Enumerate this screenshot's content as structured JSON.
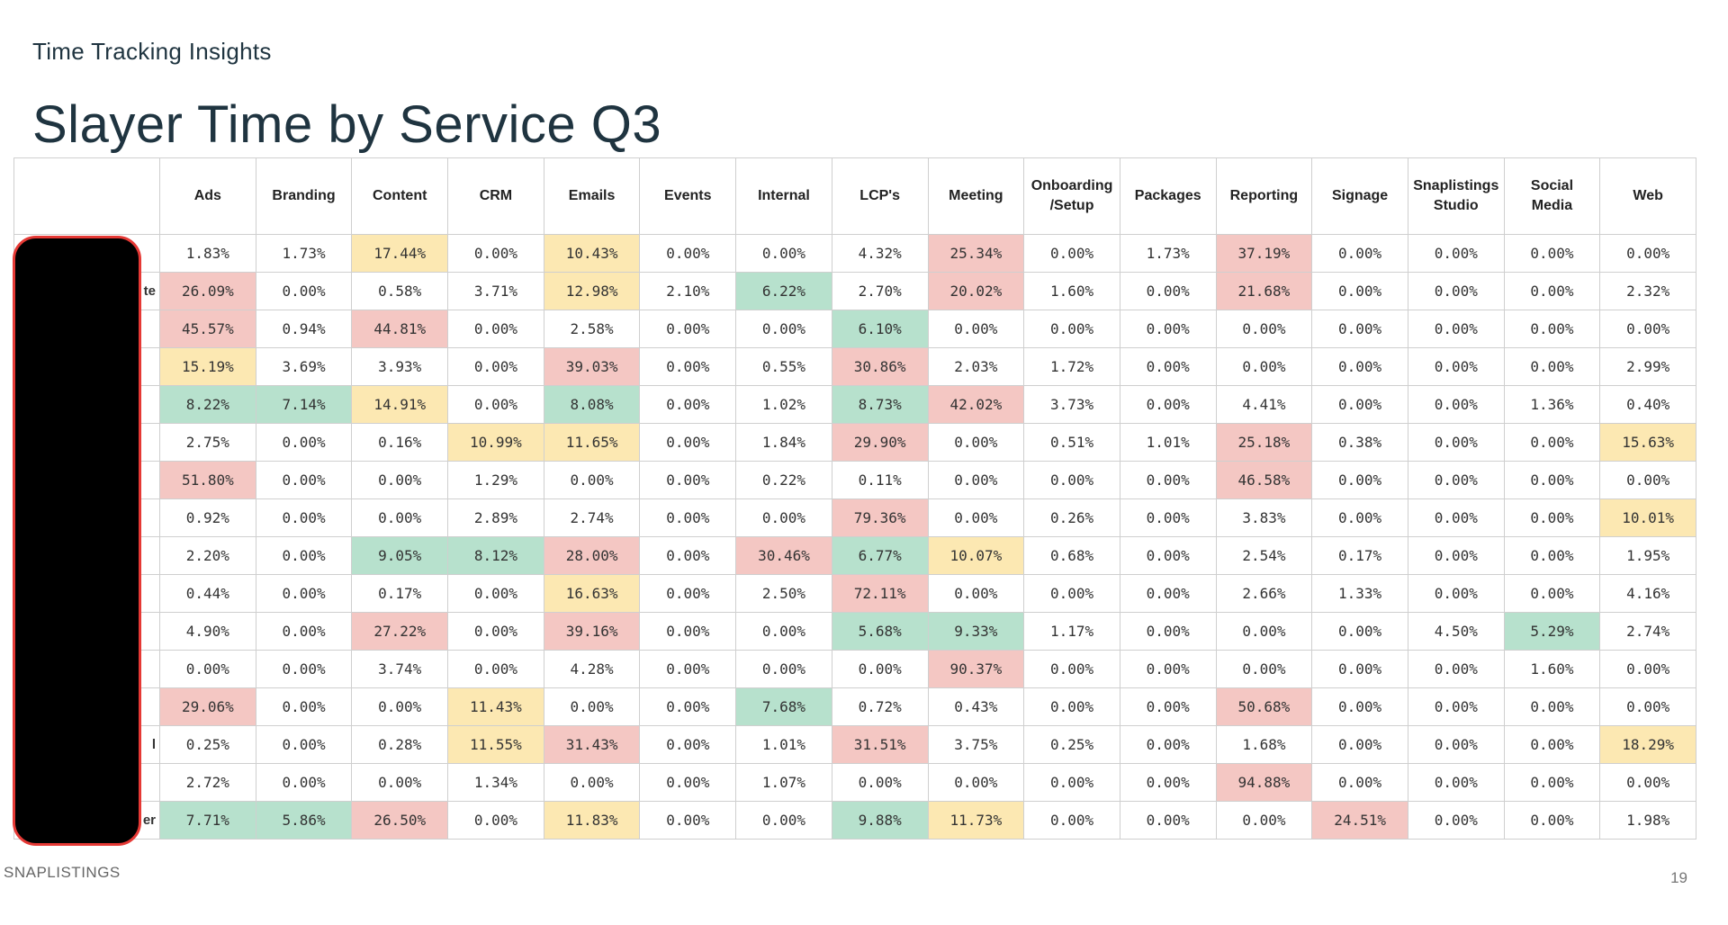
{
  "header": {
    "eyebrow": "Time Tracking Insights",
    "title": "Slayer Time by Service Q3"
  },
  "table": {
    "columns": [
      "Ads",
      "Branding",
      "Content",
      "CRM",
      "Emails",
      "Events",
      "Internal",
      "LCP's",
      "Meeting",
      "Onboarding\n/Setup",
      "Packages",
      "Reporting",
      "Signage",
      "Snaplistings\nStudio",
      "Social\nMedia",
      "Web"
    ],
    "rows": [
      {
        "name": "",
        "values": [
          "1.83%",
          "1.73%",
          "17.44%",
          "0.00%",
          "10.43%",
          "0.00%",
          "0.00%",
          "4.32%",
          "25.34%",
          "0.00%",
          "1.73%",
          "37.19%",
          "0.00%",
          "0.00%",
          "0.00%",
          "0.00%"
        ],
        "colors": [
          "",
          "",
          "y",
          "",
          "y",
          "",
          "",
          "",
          "r",
          "",
          "",
          "r",
          "",
          "",
          "",
          ""
        ]
      },
      {
        "name": "te",
        "values": [
          "26.09%",
          "0.00%",
          "0.58%",
          "3.71%",
          "12.98%",
          "2.10%",
          "6.22%",
          "2.70%",
          "20.02%",
          "1.60%",
          "0.00%",
          "21.68%",
          "0.00%",
          "0.00%",
          "0.00%",
          "2.32%"
        ],
        "colors": [
          "r",
          "",
          "",
          "",
          "y",
          "",
          "g",
          "",
          "r",
          "",
          "",
          "r",
          "",
          "",
          "",
          ""
        ]
      },
      {
        "name": "",
        "values": [
          "45.57%",
          "0.94%",
          "44.81%",
          "0.00%",
          "2.58%",
          "0.00%",
          "0.00%",
          "6.10%",
          "0.00%",
          "0.00%",
          "0.00%",
          "0.00%",
          "0.00%",
          "0.00%",
          "0.00%",
          "0.00%"
        ],
        "colors": [
          "r",
          "",
          "r",
          "",
          "",
          "",
          "",
          "g",
          "",
          "",
          "",
          "",
          "",
          "",
          "",
          ""
        ]
      },
      {
        "name": "",
        "values": [
          "15.19%",
          "3.69%",
          "3.93%",
          "0.00%",
          "39.03%",
          "0.00%",
          "0.55%",
          "30.86%",
          "2.03%",
          "1.72%",
          "0.00%",
          "0.00%",
          "0.00%",
          "0.00%",
          "0.00%",
          "2.99%"
        ],
        "colors": [
          "y",
          "",
          "",
          "",
          "r",
          "",
          "",
          "r",
          "",
          "",
          "",
          "",
          "",
          "",
          "",
          ""
        ]
      },
      {
        "name": "",
        "values": [
          "8.22%",
          "7.14%",
          "14.91%",
          "0.00%",
          "8.08%",
          "0.00%",
          "1.02%",
          "8.73%",
          "42.02%",
          "3.73%",
          "0.00%",
          "4.41%",
          "0.00%",
          "0.00%",
          "1.36%",
          "0.40%"
        ],
        "colors": [
          "g",
          "g",
          "y",
          "",
          "g",
          "",
          "",
          "g",
          "r",
          "",
          "",
          "",
          "",
          "",
          "",
          ""
        ]
      },
      {
        "name": "",
        "values": [
          "2.75%",
          "0.00%",
          "0.16%",
          "10.99%",
          "11.65%",
          "0.00%",
          "1.84%",
          "29.90%",
          "0.00%",
          "0.51%",
          "1.01%",
          "25.18%",
          "0.38%",
          "0.00%",
          "0.00%",
          "15.63%"
        ],
        "colors": [
          "",
          "",
          "",
          "y",
          "y",
          "",
          "",
          "r",
          "",
          "",
          "",
          "r",
          "",
          "",
          "",
          "y"
        ]
      },
      {
        "name": "",
        "values": [
          "51.80%",
          "0.00%",
          "0.00%",
          "1.29%",
          "0.00%",
          "0.00%",
          "0.22%",
          "0.11%",
          "0.00%",
          "0.00%",
          "0.00%",
          "46.58%",
          "0.00%",
          "0.00%",
          "0.00%",
          "0.00%"
        ],
        "colors": [
          "r",
          "",
          "",
          "",
          "",
          "",
          "",
          "",
          "",
          "",
          "",
          "r",
          "",
          "",
          "",
          ""
        ]
      },
      {
        "name": "",
        "values": [
          "0.92%",
          "0.00%",
          "0.00%",
          "2.89%",
          "2.74%",
          "0.00%",
          "0.00%",
          "79.36%",
          "0.00%",
          "0.26%",
          "0.00%",
          "3.83%",
          "0.00%",
          "0.00%",
          "0.00%",
          "10.01%"
        ],
        "colors": [
          "",
          "",
          "",
          "",
          "",
          "",
          "",
          "r",
          "",
          "",
          "",
          "",
          "",
          "",
          "",
          "y"
        ]
      },
      {
        "name": "",
        "values": [
          "2.20%",
          "0.00%",
          "9.05%",
          "8.12%",
          "28.00%",
          "0.00%",
          "30.46%",
          "6.77%",
          "10.07%",
          "0.68%",
          "0.00%",
          "2.54%",
          "0.17%",
          "0.00%",
          "0.00%",
          "1.95%"
        ],
        "colors": [
          "",
          "",
          "g",
          "g",
          "r",
          "",
          "r",
          "g",
          "y",
          "",
          "",
          "",
          "",
          "",
          "",
          ""
        ]
      },
      {
        "name": "",
        "values": [
          "0.44%",
          "0.00%",
          "0.17%",
          "0.00%",
          "16.63%",
          "0.00%",
          "2.50%",
          "72.11%",
          "0.00%",
          "0.00%",
          "0.00%",
          "2.66%",
          "1.33%",
          "0.00%",
          "0.00%",
          "4.16%"
        ],
        "colors": [
          "",
          "",
          "",
          "",
          "y",
          "",
          "",
          "r",
          "",
          "",
          "",
          "",
          "",
          "",
          "",
          ""
        ]
      },
      {
        "name": "",
        "values": [
          "4.90%",
          "0.00%",
          "27.22%",
          "0.00%",
          "39.16%",
          "0.00%",
          "0.00%",
          "5.68%",
          "9.33%",
          "1.17%",
          "0.00%",
          "0.00%",
          "0.00%",
          "4.50%",
          "5.29%",
          "2.74%"
        ],
        "colors": [
          "",
          "",
          "r",
          "",
          "r",
          "",
          "",
          "g",
          "g",
          "",
          "",
          "",
          "",
          "",
          "g",
          ""
        ]
      },
      {
        "name": "",
        "values": [
          "0.00%",
          "0.00%",
          "3.74%",
          "0.00%",
          "4.28%",
          "0.00%",
          "0.00%",
          "0.00%",
          "90.37%",
          "0.00%",
          "0.00%",
          "0.00%",
          "0.00%",
          "0.00%",
          "1.60%",
          "0.00%"
        ],
        "colors": [
          "",
          "",
          "",
          "",
          "",
          "",
          "",
          "",
          "r",
          "",
          "",
          "",
          "",
          "",
          "",
          ""
        ]
      },
      {
        "name": "",
        "values": [
          "29.06%",
          "0.00%",
          "0.00%",
          "11.43%",
          "0.00%",
          "0.00%",
          "7.68%",
          "0.72%",
          "0.43%",
          "0.00%",
          "0.00%",
          "50.68%",
          "0.00%",
          "0.00%",
          "0.00%",
          "0.00%"
        ],
        "colors": [
          "r",
          "",
          "",
          "y",
          "",
          "",
          "g",
          "",
          "",
          "",
          "",
          "r",
          "",
          "",
          "",
          ""
        ]
      },
      {
        "name": "l",
        "values": [
          "0.25%",
          "0.00%",
          "0.28%",
          "11.55%",
          "31.43%",
          "0.00%",
          "1.01%",
          "31.51%",
          "3.75%",
          "0.25%",
          "0.00%",
          "1.68%",
          "0.00%",
          "0.00%",
          "0.00%",
          "18.29%"
        ],
        "colors": [
          "",
          "",
          "",
          "y",
          "r",
          "",
          "",
          "r",
          "",
          "",
          "",
          "",
          "",
          "",
          "",
          "y"
        ]
      },
      {
        "name": "",
        "values": [
          "2.72%",
          "0.00%",
          "0.00%",
          "1.34%",
          "0.00%",
          "0.00%",
          "1.07%",
          "0.00%",
          "0.00%",
          "0.00%",
          "0.00%",
          "94.88%",
          "0.00%",
          "0.00%",
          "0.00%",
          "0.00%"
        ],
        "colors": [
          "",
          "",
          "",
          "",
          "",
          "",
          "",
          "",
          "",
          "",
          "",
          "r",
          "",
          "",
          "",
          ""
        ]
      },
      {
        "name": "er",
        "values": [
          "7.71%",
          "5.86%",
          "26.50%",
          "0.00%",
          "11.83%",
          "0.00%",
          "0.00%",
          "9.88%",
          "11.73%",
          "0.00%",
          "0.00%",
          "0.00%",
          "24.51%",
          "0.00%",
          "0.00%",
          "1.98%"
        ],
        "colors": [
          "g",
          "g",
          "r",
          "",
          "y",
          "",
          "",
          "g",
          "y",
          "",
          "",
          "",
          "r",
          "",
          "",
          ""
        ]
      }
    ]
  },
  "footer": {
    "brand": "SNAPLISTINGS",
    "page_number": "19"
  }
}
